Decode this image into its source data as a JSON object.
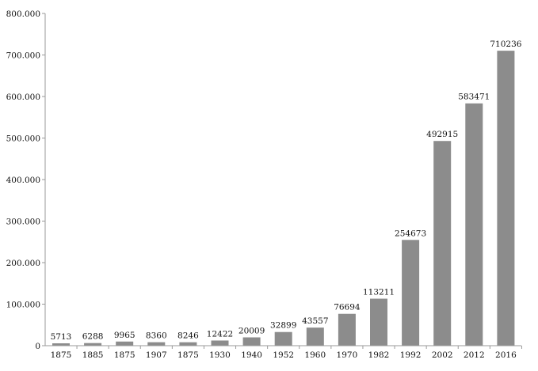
{
  "chart_data": {
    "type": "bar",
    "categories": [
      "1875",
      "1885",
      "1875",
      "1907",
      "1875",
      "1930",
      "1940",
      "1952",
      "1960",
      "1970",
      "1982",
      "1992",
      "2002",
      "2012",
      "2016"
    ],
    "values": [
      5713,
      6288,
      9965,
      8360,
      8246,
      12422,
      20009,
      32899,
      43557,
      76694,
      113211,
      254673,
      492915,
      583471,
      710236
    ],
    "value_labels": [
      "5713",
      "6288",
      "9965",
      "8360",
      "8246",
      "12422",
      "20009",
      "32899",
      "43557",
      "76694",
      "113211",
      "254673",
      "492915",
      "583471",
      "710236"
    ],
    "yticks": [
      0,
      100000,
      200000,
      300000,
      400000,
      500000,
      600000,
      700000,
      800000
    ],
    "ytick_labels": [
      "0",
      "100.000",
      "200.000",
      "300.000",
      "400.000",
      "500.000",
      "600.000",
      "700.000",
      "800.000"
    ],
    "ylim": [
      0,
      800000
    ],
    "grid": false,
    "legend": "none",
    "bar_color": "#8c8c8c"
  }
}
